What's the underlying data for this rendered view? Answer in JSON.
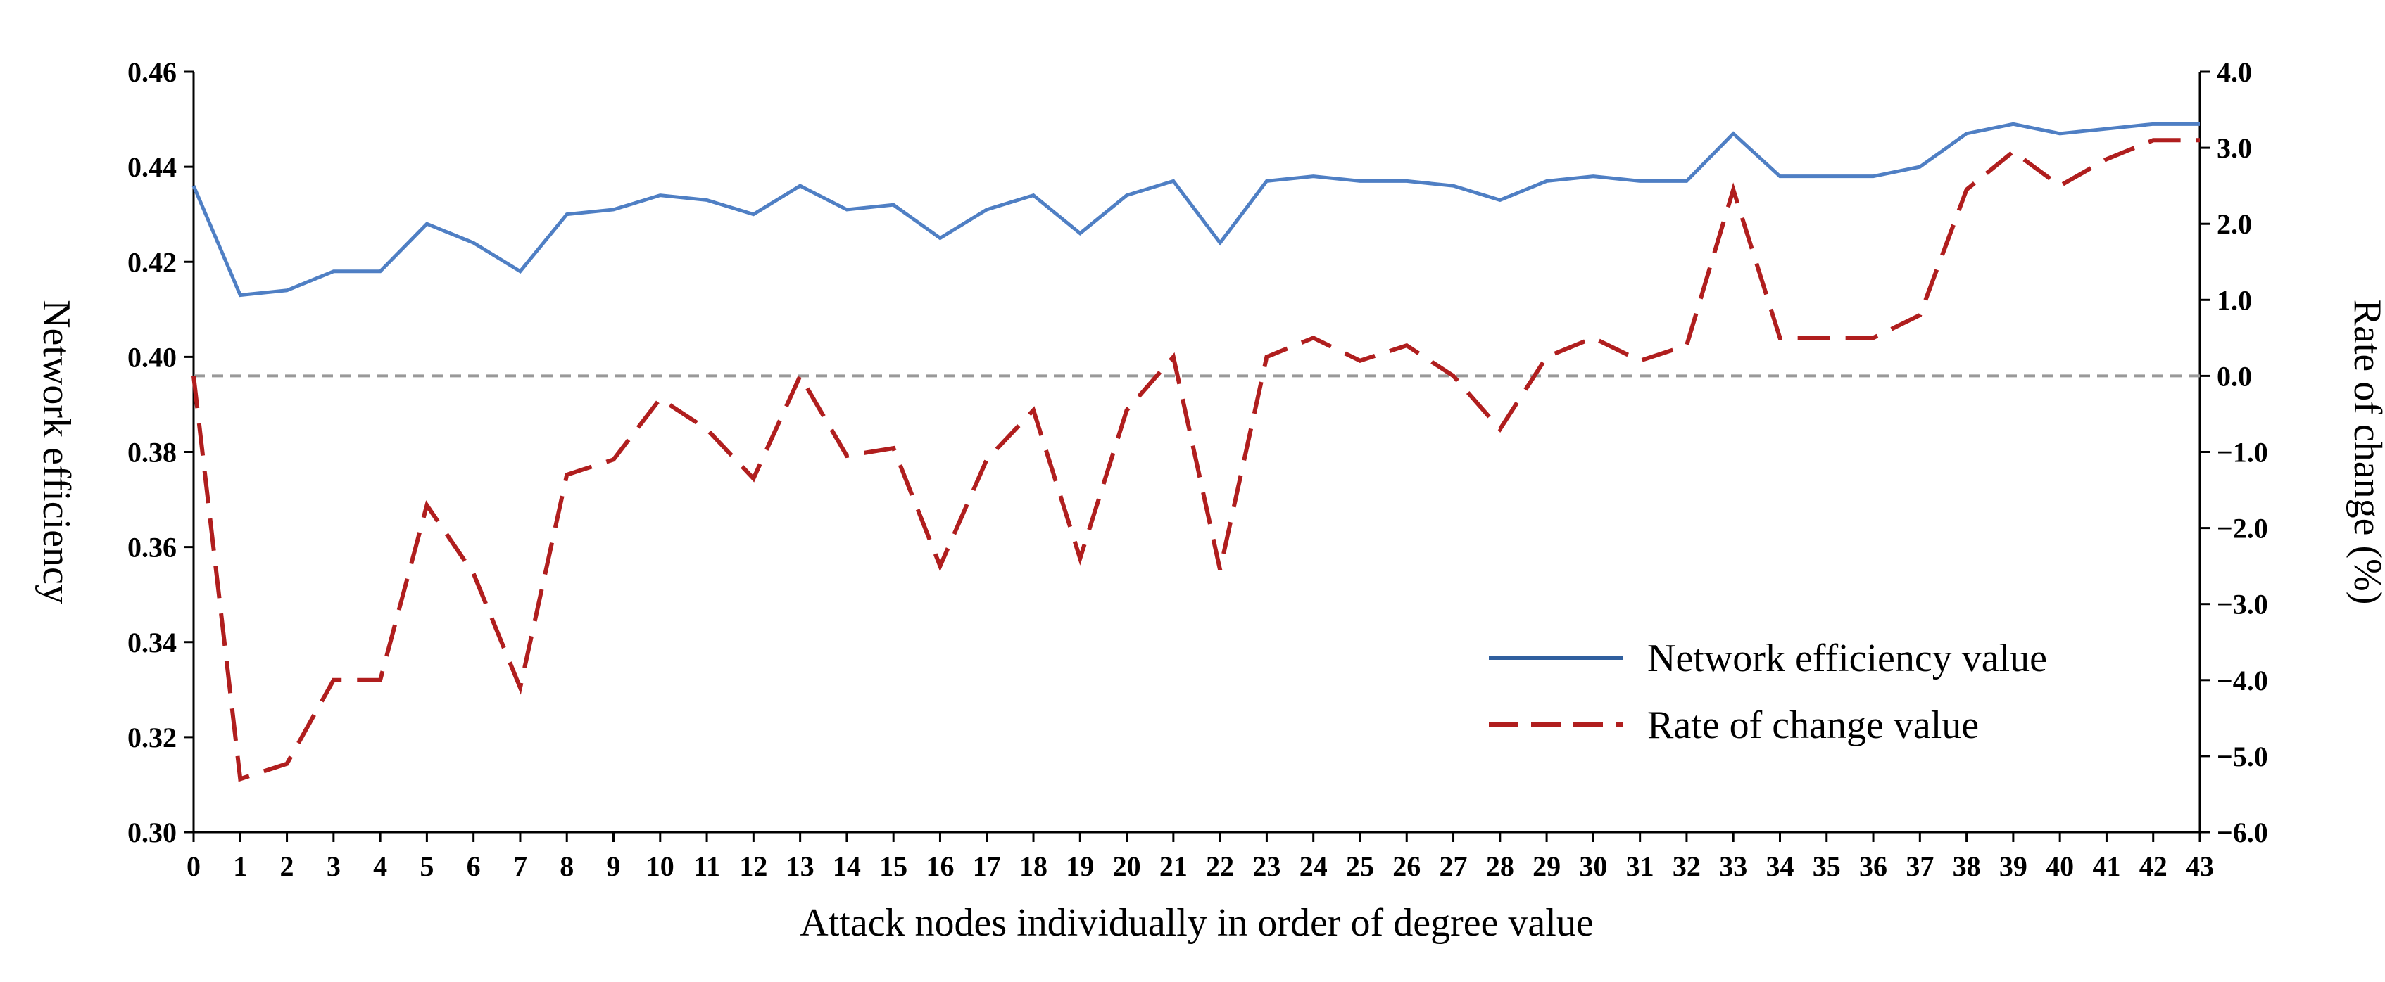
{
  "chart_data": {
    "type": "line",
    "xlabel": "Attack nodes individually in order of degree value",
    "ylabel": "Network efficiency",
    "y2label": "Rate of change (%)",
    "x": [
      0,
      1,
      2,
      3,
      4,
      5,
      6,
      7,
      8,
      9,
      10,
      11,
      12,
      13,
      14,
      15,
      16,
      17,
      18,
      19,
      20,
      21,
      22,
      23,
      24,
      25,
      26,
      27,
      28,
      29,
      30,
      31,
      32,
      33,
      34,
      35,
      36,
      37,
      38,
      39,
      40,
      41,
      42,
      43
    ],
    "xlim": [
      0,
      43
    ],
    "ylim": [
      0.3,
      0.46
    ],
    "y2lim": [
      -6.0,
      4.0
    ],
    "y_ticks": [
      "0.30",
      "0.32",
      "0.34",
      "0.36",
      "0.38",
      "0.40",
      "0.42",
      "0.44",
      "0.46"
    ],
    "y2_ticks": [
      "-6.0",
      "-5.0",
      "-4.0",
      "-3.0",
      "-2.0",
      "-1.0",
      "0.0",
      "1.0",
      "2.0",
      "3.0",
      "4.0"
    ],
    "reference_line": {
      "axis": "y2",
      "value": 0.0,
      "style": "dashed",
      "color": "#999999"
    },
    "legend_position": "lower-right",
    "series": [
      {
        "name": "Network efficiency value",
        "axis": "y",
        "style": "solid",
        "color": "#4f7fc4",
        "legend_color": "#2f5f9e",
        "values": [
          0.436,
          0.413,
          0.414,
          0.418,
          0.418,
          0.428,
          0.424,
          0.418,
          0.43,
          0.431,
          0.434,
          0.433,
          0.43,
          0.436,
          0.431,
          0.432,
          0.425,
          0.431,
          0.434,
          0.426,
          0.434,
          0.437,
          0.424,
          0.437,
          0.438,
          0.437,
          0.437,
          0.436,
          0.433,
          0.437,
          0.438,
          0.437,
          0.437,
          0.447,
          0.438,
          0.438,
          0.438,
          0.44,
          0.447,
          0.449,
          0.447,
          0.448,
          0.449,
          0.449
        ]
      },
      {
        "name": "Rate of change value",
        "axis": "y2",
        "style": "dashed",
        "color": "#b01e1e",
        "legend_color": "#b01e1e",
        "values": [
          0.0,
          -5.3,
          -5.1,
          -4.0,
          -4.0,
          -1.7,
          -2.6,
          -4.1,
          -1.3,
          -1.1,
          -0.3,
          -0.7,
          -1.35,
          0.0,
          -1.05,
          -0.95,
          -2.5,
          -1.1,
          -0.45,
          -2.4,
          -0.45,
          0.25,
          -2.55,
          0.25,
          0.5,
          0.2,
          0.4,
          0.0,
          -0.7,
          0.25,
          0.5,
          0.2,
          0.4,
          2.45,
          0.5,
          0.5,
          0.5,
          0.8,
          2.45,
          2.95,
          2.5,
          2.85,
          3.1,
          3.1
        ]
      }
    ]
  }
}
